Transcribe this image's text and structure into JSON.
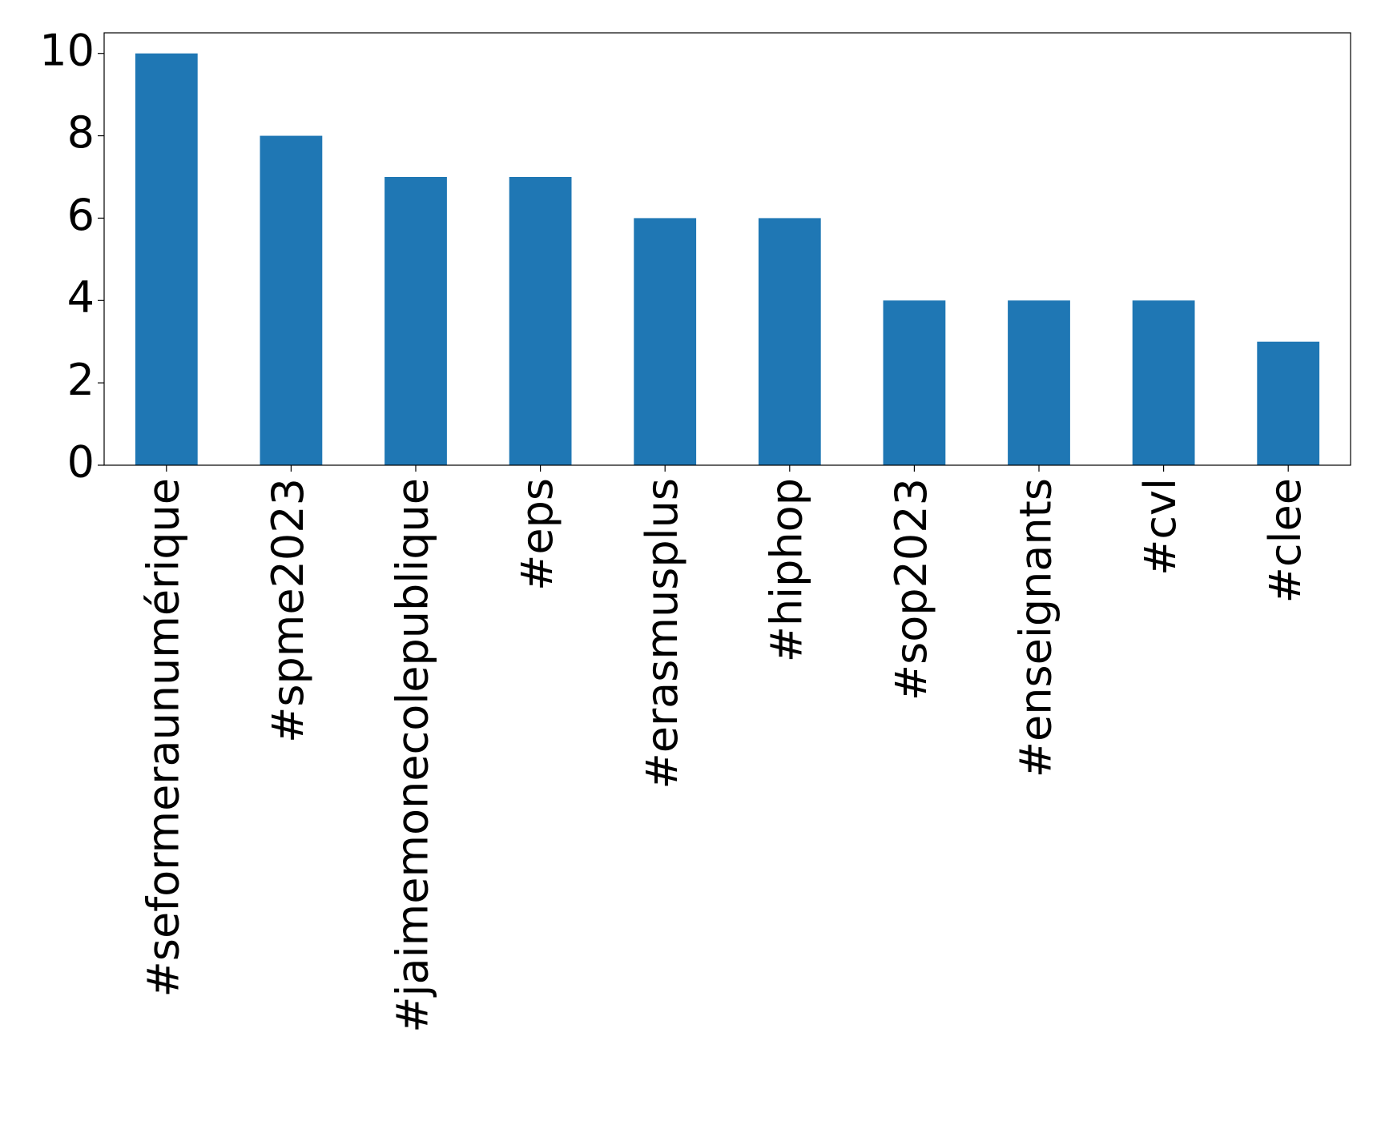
{
  "chart_data": {
    "type": "bar",
    "categories": [
      "#seformeraunumérique",
      "#spme2023",
      "#jaimemonecolepublique",
      "#eps",
      "#erasmusplus",
      "#hiphop",
      "#sop2023",
      "#enseignants",
      "#cvl",
      "#clee"
    ],
    "values": [
      10,
      8,
      7,
      7,
      6,
      6,
      4,
      4,
      4,
      3
    ],
    "color": "#1f77b4",
    "ylim": [
      0,
      10.5
    ],
    "yticks": [
      0,
      2,
      4,
      6,
      8,
      10
    ],
    "grid": false
  }
}
